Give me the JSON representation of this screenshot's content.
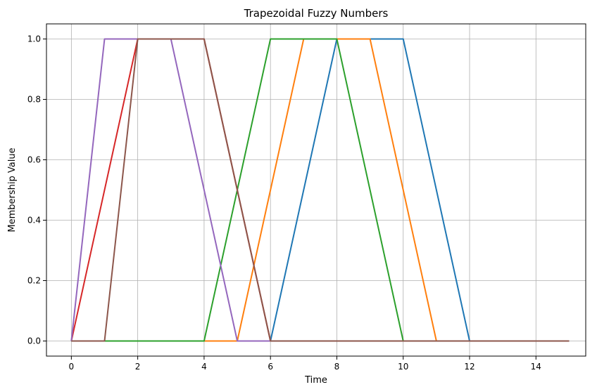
{
  "chart_data": {
    "type": "line",
    "title": "Trapezoidal Fuzzy Numbers",
    "xlabel": "Time",
    "ylabel": "Membership Value",
    "xlim": [
      -0.75,
      15.5
    ],
    "ylim": [
      -0.05,
      1.05
    ],
    "x_ticks": [
      0,
      2,
      4,
      6,
      8,
      10,
      12,
      14
    ],
    "y_ticks": [
      0.0,
      0.2,
      0.4,
      0.6,
      0.8,
      1.0
    ],
    "x_tick_labels": [
      "0",
      "2",
      "4",
      "6",
      "8",
      "10",
      "12",
      "14"
    ],
    "y_tick_labels": [
      "0.0",
      "0.2",
      "0.4",
      "0.6",
      "0.8",
      "1.0"
    ],
    "grid": true,
    "legend": "none",
    "series": [
      {
        "color": "#1f77b4",
        "x": [
          0,
          6,
          8,
          10,
          12,
          15
        ],
        "y": [
          0,
          0,
          1,
          1,
          0,
          0
        ]
      },
      {
        "color": "#ff7f0e",
        "x": [
          0,
          5,
          7,
          9,
          11,
          15
        ],
        "y": [
          0,
          0,
          1,
          1,
          0,
          0
        ]
      },
      {
        "color": "#2ca02c",
        "x": [
          0,
          4,
          6,
          8,
          10,
          15
        ],
        "y": [
          0,
          0,
          1,
          1,
          0,
          0
        ]
      },
      {
        "color": "#d62728",
        "x": [
          0,
          2,
          4,
          6,
          15
        ],
        "y": [
          0,
          1,
          1,
          0,
          0
        ]
      },
      {
        "color": "#9467bd",
        "x": [
          0,
          1,
          3,
          5,
          15
        ],
        "y": [
          0,
          1,
          1,
          0,
          0
        ]
      },
      {
        "color": "#8c564b",
        "x": [
          0,
          1,
          2,
          4,
          6,
          15
        ],
        "y": [
          0,
          0,
          1,
          1,
          0,
          0
        ]
      }
    ]
  }
}
